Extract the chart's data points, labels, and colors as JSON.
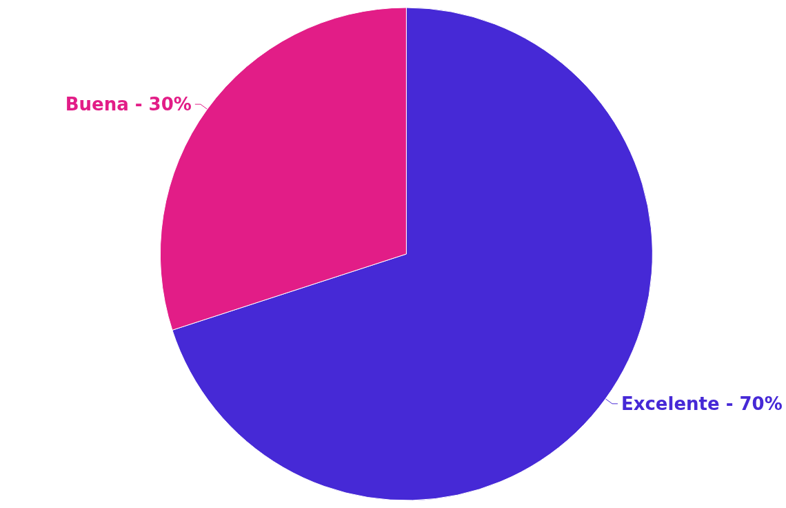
{
  "chart_data": {
    "type": "pie",
    "categories": [
      "Excelente - 70%",
      "Buena - 30%"
    ],
    "values": [
      70,
      30
    ],
    "colors": [
      "#4629d6",
      "#e21d87"
    ]
  }
}
